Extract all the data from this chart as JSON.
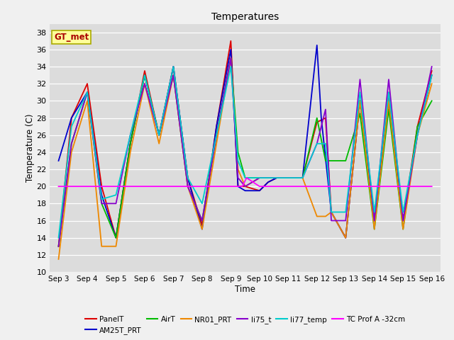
{
  "title": "Temperatures",
  "xlabel": "Time",
  "ylabel": "Temperature (C)",
  "bg_color": "#dcdcdc",
  "grid_color": "#ffffff",
  "fig_color": "#f0f0f0",
  "annotation_text": "GT_met",
  "annotation_fg": "#aa0000",
  "annotation_bg": "#ffff99",
  "annotation_border": "#aaaa00",
  "xtick_labels": [
    "Sep 3",
    "Sep 4",
    "Sep 5",
    "Sep 6",
    "Sep 7",
    "Sep 8",
    "Sep 9",
    "Sep 10",
    "Sep 11",
    "Sep 12",
    "Sep 13",
    "Sep 14",
    "Sep 15",
    "Sep 16"
  ],
  "ylim": [
    10,
    39
  ],
  "yticks": [
    10,
    12,
    14,
    16,
    18,
    20,
    22,
    24,
    26,
    28,
    30,
    32,
    34,
    36,
    38
  ],
  "series_colors": {
    "PanelT": "#dd0000",
    "AM25T_PRT": "#0000cc",
    "AirT": "#00bb00",
    "NR01_PRT": "#ee8800",
    "li75_t": "#8800cc",
    "li77_temp": "#00cccc",
    "TC Prof A -32cm": "#ff00ff"
  },
  "PanelT_x": [
    0,
    0.45,
    1,
    1.5,
    2,
    2.5,
    3,
    3.5,
    4,
    4.5,
    5,
    5.5,
    6,
    6.25,
    6.5,
    7,
    7.3,
    7.6,
    8,
    8.5,
    9,
    9.3,
    9.5,
    10,
    10.5,
    11,
    11.5,
    12,
    12.5,
    13
  ],
  "PanelT_y": [
    13,
    28,
    32,
    20,
    14,
    25,
    33.5,
    26,
    34,
    21,
    15.5,
    27,
    37,
    20,
    20,
    19.5,
    20.5,
    21,
    21,
    21,
    27.5,
    28,
    17,
    14,
    30,
    16,
    31,
    16,
    27,
    33.5
  ],
  "AM25T_PRT_x": [
    0,
    0.45,
    1,
    1.5,
    2,
    2.5,
    3,
    3.5,
    4,
    4.5,
    5,
    5.5,
    6,
    6.25,
    6.5,
    7,
    7.3,
    7.6,
    8,
    8.5,
    9,
    9.15,
    9.5,
    10,
    10.5,
    11,
    11.5,
    12,
    12.5,
    13
  ],
  "AM25T_PRT_y": [
    23,
    28,
    31,
    19,
    14,
    25,
    33,
    26,
    34,
    21,
    15,
    27,
    36,
    20,
    19.5,
    19.5,
    20.5,
    21,
    21,
    21,
    36.5,
    28,
    17,
    14,
    30,
    16,
    30,
    16,
    26,
    33
  ],
  "AirT_x": [
    0,
    0.45,
    1,
    1.5,
    2,
    2.5,
    3,
    3.5,
    4,
    4.5,
    5,
    5.5,
    6,
    6.25,
    6.5,
    7,
    7.3,
    7.6,
    8,
    8.5,
    9,
    9.3,
    9.5,
    10,
    10.5,
    11,
    11.5,
    12,
    12.5,
    13
  ],
  "AirT_y": [
    13,
    25,
    31,
    18,
    14,
    25,
    33,
    26,
    33,
    20,
    16,
    26,
    35,
    24,
    21,
    21,
    21,
    21,
    21,
    21,
    28,
    23,
    23,
    23,
    28.5,
    15,
    29,
    15,
    27,
    30
  ],
  "NR01_PRT_x": [
    0,
    0.45,
    1,
    1.5,
    2,
    2.5,
    3,
    3.5,
    4,
    4.5,
    5,
    5.5,
    6,
    6.25,
    6.5,
    7,
    7.3,
    7.6,
    8,
    8.5,
    9,
    9.3,
    9.5,
    10,
    10.5,
    11,
    11.5,
    12,
    12.5,
    13
  ],
  "NR01_PRT_y": [
    11.5,
    24,
    30,
    13,
    13,
    24,
    32,
    25,
    33,
    20,
    15,
    25,
    35,
    22,
    20,
    21,
    21,
    21,
    21,
    21,
    16.5,
    16.5,
    17,
    14,
    30,
    15,
    30,
    15,
    26,
    32
  ],
  "li75_t_x": [
    0,
    0.45,
    1,
    1.5,
    2,
    2.5,
    3,
    3.5,
    4,
    4.5,
    5,
    5.5,
    6,
    6.25,
    6.5,
    7,
    7.3,
    7.6,
    8,
    8.5,
    9,
    9.3,
    9.5,
    10,
    10.5,
    11,
    11.5,
    12,
    12.5,
    13
  ],
  "li75_t_y": [
    13,
    25,
    31,
    18,
    18,
    26,
    32,
    26,
    33,
    20,
    16,
    26,
    35,
    21,
    20,
    21,
    21,
    21,
    21,
    21,
    25,
    29,
    16,
    16,
    32.5,
    16,
    32.5,
    16,
    26,
    34
  ],
  "li77_temp_x": [
    0,
    0.45,
    1,
    1.5,
    2,
    2.5,
    3,
    3.5,
    4,
    4.5,
    5,
    5.5,
    6,
    6.25,
    6.5,
    7,
    7.3,
    7.6,
    8,
    8.5,
    9,
    9.3,
    9.5,
    10,
    10.5,
    11,
    11.5,
    12,
    12.5,
    13
  ],
  "li77_temp_y": [
    14,
    27,
    31,
    18.5,
    19,
    26,
    33,
    26,
    34,
    21,
    18,
    26,
    34,
    23,
    21,
    21,
    21,
    21,
    21,
    21,
    25,
    25,
    17,
    17,
    31,
    17,
    31,
    17,
    26,
    33
  ],
  "TC_x": [
    0,
    6.4,
    6.55,
    7,
    7.1,
    9.2,
    9.25,
    13
  ],
  "TC_y": [
    20,
    20,
    21,
    20,
    20,
    20,
    20,
    20
  ]
}
